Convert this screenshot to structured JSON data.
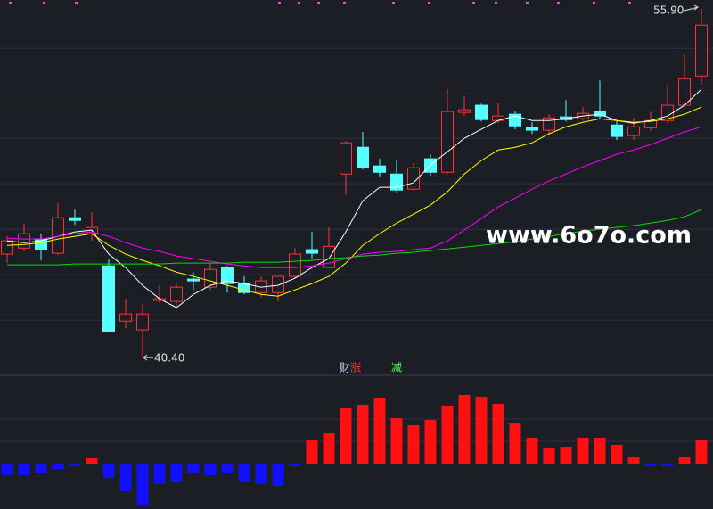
{
  "chart_data": [
    {
      "type": "candlestick",
      "open": [
        45.0,
        45.27,
        45.67,
        45.04,
        46.62,
        45.91,
        44.48,
        42.02,
        41.63,
        42.94,
        42.9,
        43.89,
        43.53,
        44.4,
        43.69,
        43.29,
        43.29,
        44.01,
        45.2,
        44.4,
        48.56,
        49.75,
        48.92,
        48.56,
        47.89,
        49.24,
        48.64,
        51.3,
        51.62,
        50.94,
        51.22,
        50.62,
        50.51,
        51.1,
        51.02,
        51.34,
        50.74,
        50.27,
        50.62,
        50.94,
        51.62,
        52.92
      ],
      "high": [
        45.79,
        46.38,
        45.91,
        47.26,
        46.98,
        46.86,
        44.8,
        43.02,
        42.82,
        43.61,
        43.69,
        44.2,
        44.6,
        44.48,
        44.01,
        44.01,
        44.09,
        45.27,
        45.99,
        46.19,
        50.03,
        50.43,
        49.24,
        49.16,
        49.04,
        49.44,
        52.33,
        52.01,
        51.69,
        51.73,
        51.34,
        50.86,
        51.22,
        51.85,
        51.54,
        52.72,
        50.94,
        51.06,
        51.34,
        52.53,
        53.91,
        55.9
      ],
      "low": [
        44.6,
        45.12,
        44.72,
        44.96,
        46.3,
        45.59,
        41.55,
        41.71,
        40.4,
        42.82,
        42.62,
        43.41,
        43.41,
        43.29,
        43.21,
        43.09,
        42.9,
        43.93,
        44.8,
        44.4,
        47.65,
        48.76,
        48.44,
        47.73,
        47.81,
        48.48,
        48.56,
        51.14,
        50.9,
        50.82,
        50.55,
        50.35,
        50.27,
        50.9,
        50.94,
        51.02,
        50.07,
        50.07,
        50.47,
        50.82,
        51.54,
        52.53
      ],
      "close": [
        45.59,
        45.91,
        45.2,
        46.62,
        46.5,
        46.19,
        41.55,
        42.34,
        42.34,
        43.02,
        43.53,
        43.81,
        44.32,
        43.69,
        43.29,
        43.81,
        44.01,
        45.0,
        45.04,
        45.35,
        49.95,
        48.84,
        48.64,
        47.85,
        48.84,
        48.64,
        51.34,
        51.42,
        50.98,
        51.14,
        50.7,
        50.51,
        51.06,
        50.98,
        51.26,
        51.14,
        50.23,
        50.66,
        50.94,
        51.62,
        52.8,
        55.18
      ],
      "up_color": "#ff3232",
      "down_color": "#54ffff",
      "series": [
        {
          "color": "#ffffff",
          "values": [
            45.59,
            45.51,
            45.59,
            45.79,
            45.99,
            46.07,
            45.0,
            44.4,
            43.61,
            43.02,
            42.62,
            43.21,
            43.61,
            43.81,
            43.69,
            43.53,
            43.61,
            43.93,
            44.4,
            44.8,
            45.99,
            47.37,
            47.97,
            47.97,
            48.17,
            48.96,
            49.55,
            50.15,
            50.55,
            50.94,
            51.14,
            50.94,
            50.94,
            51.02,
            51.14,
            51.22,
            50.94,
            50.82,
            50.94,
            51.14,
            51.62,
            52.33
          ]
        },
        {
          "color": "#ffff00",
          "values": [
            45.39,
            45.43,
            45.51,
            45.67,
            45.79,
            45.91,
            45.39,
            45.0,
            44.72,
            44.48,
            44.2,
            44.01,
            43.81,
            43.61,
            43.41,
            43.21,
            43.13,
            43.41,
            43.69,
            44.01,
            44.6,
            45.39,
            45.91,
            46.38,
            46.78,
            47.18,
            47.77,
            48.56,
            49.16,
            49.63,
            49.75,
            49.95,
            50.35,
            50.66,
            50.86,
            51.02,
            50.94,
            50.86,
            50.9,
            51.02,
            51.22,
            51.54
          ]
        },
        {
          "color": "#ff00ff",
          "values": [
            45.71,
            45.67,
            45.67,
            45.79,
            45.91,
            45.99,
            45.79,
            45.51,
            45.27,
            45.12,
            44.92,
            44.8,
            44.68,
            44.56,
            44.48,
            44.4,
            44.4,
            44.4,
            44.48,
            44.6,
            44.8,
            45.0,
            45.08,
            45.12,
            45.2,
            45.27,
            45.59,
            46.07,
            46.58,
            47.1,
            47.49,
            47.89,
            48.25,
            48.56,
            48.88,
            49.16,
            49.44,
            49.63,
            49.87,
            50.15,
            50.43,
            50.66
          ]
        },
        {
          "color": "#00e000",
          "values": [
            44.52,
            44.52,
            44.52,
            44.52,
            44.56,
            44.56,
            44.56,
            44.56,
            44.56,
            44.56,
            44.6,
            44.6,
            44.6,
            44.6,
            44.64,
            44.64,
            44.64,
            44.68,
            44.72,
            44.8,
            44.84,
            44.92,
            44.96,
            45.04,
            45.08,
            45.16,
            45.23,
            45.31,
            45.39,
            45.47,
            45.55,
            45.67,
            45.79,
            45.91,
            46.03,
            46.11,
            46.19,
            46.27,
            46.38,
            46.5,
            46.66,
            46.98
          ]
        }
      ],
      "ylim": [
        39.85,
        56.3
      ],
      "yticks": [
        42.06,
        44.09,
        46.11,
        48.13,
        50.15,
        52.13,
        54.15
      ],
      "grid": true,
      "annotations": [
        {
          "text": "55.90",
          "value": 55.9,
          "index": 41
        },
        {
          "text": "40.40",
          "value": 40.4,
          "index": 8
        }
      ],
      "indicator_labels": [
        {
          "text": "财",
          "color": "#d0d8ff"
        },
        {
          "text": "涨",
          "color": "#ff4040"
        },
        {
          "text": "减",
          "color": "#40ff40"
        }
      ],
      "watermark": "www.6o7o.com"
    },
    {
      "type": "bar",
      "values": [
        -1.2,
        -1.2,
        -1.0,
        -0.5,
        -0.2,
        0.7,
        -1.5,
        -3.0,
        -4.5,
        -2.2,
        -2.0,
        -1.0,
        -1.2,
        -1.0,
        -2.0,
        -2.2,
        -2.4,
        -0.2,
        2.7,
        3.5,
        6.3,
        6.7,
        7.4,
        5.2,
        4.4,
        5.0,
        6.6,
        7.8,
        7.6,
        6.8,
        4.6,
        3.0,
        1.8,
        2.0,
        3.0,
        3.0,
        2.2,
        0.8,
        -0.2,
        -0.2,
        0.8,
        2.7
      ],
      "up_color": "#ff1010",
      "down_color": "#1010ff",
      "ylim": [
        -5,
        10
      ]
    }
  ]
}
